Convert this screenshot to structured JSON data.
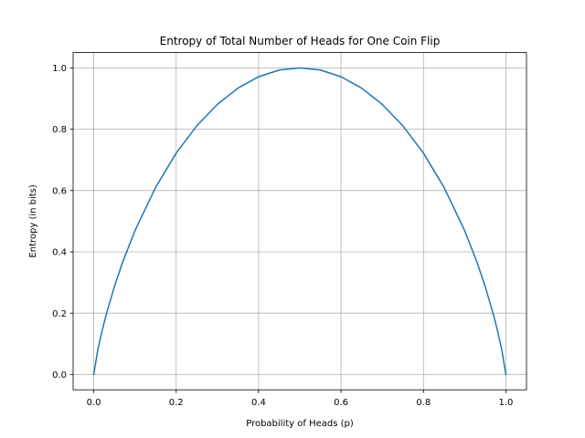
{
  "chart_data": {
    "type": "line",
    "title": "Entropy of Total Number of Heads for One Coin Flip",
    "xlabel": "Probability of Heads (p)",
    "ylabel": "Entropy (in bits)",
    "xlim": [
      -0.05,
      1.05
    ],
    "ylim": [
      -0.05,
      1.05
    ],
    "x_ticks": [
      "0.0",
      "0.2",
      "0.4",
      "0.6",
      "0.8",
      "1.0"
    ],
    "y_ticks": [
      "0.0",
      "0.2",
      "0.4",
      "0.6",
      "0.8",
      "1.0"
    ],
    "grid": true,
    "series": [
      {
        "color": "#1f77b4",
        "x": [
          0.0,
          0.01,
          0.02,
          0.03,
          0.05,
          0.07,
          0.1,
          0.15,
          0.2,
          0.25,
          0.3,
          0.35,
          0.4,
          0.45,
          0.5,
          0.55,
          0.6,
          0.65,
          0.7,
          0.75,
          0.8,
          0.85,
          0.9,
          0.93,
          0.95,
          0.97,
          0.98,
          0.99,
          1.0
        ],
        "y": [
          0.0,
          0.081,
          0.141,
          0.194,
          0.286,
          0.366,
          0.469,
          0.61,
          0.722,
          0.811,
          0.881,
          0.934,
          0.971,
          0.993,
          1.0,
          0.993,
          0.971,
          0.934,
          0.881,
          0.811,
          0.722,
          0.61,
          0.469,
          0.366,
          0.286,
          0.194,
          0.141,
          0.081,
          0.0
        ]
      }
    ]
  }
}
